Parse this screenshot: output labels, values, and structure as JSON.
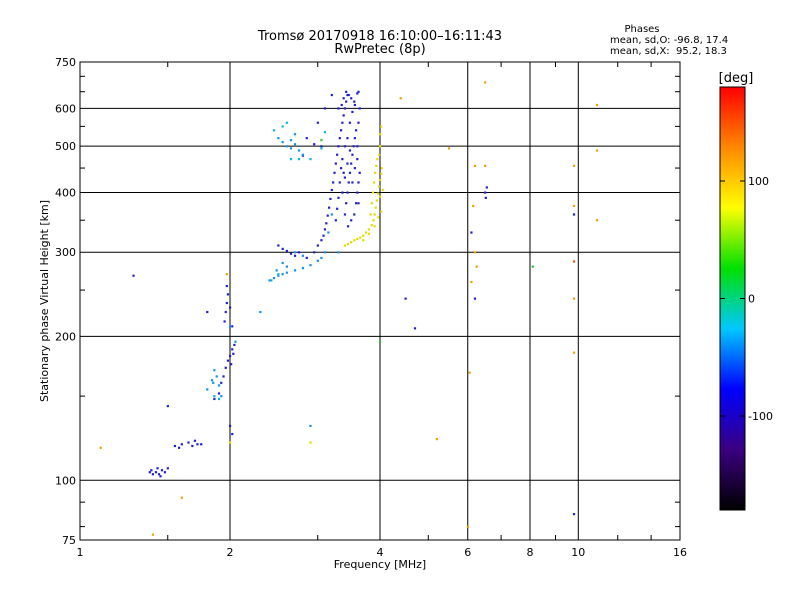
{
  "chart_data": {
    "type": "scatter",
    "title": "Tromsø 20170918 16:10:00–16:11:43",
    "subtitle": "RwPretec (8p)",
    "xlabel": "Frequency [MHz]",
    "ylabel": "Stationary phase Virtual Height [km]",
    "x_scale": "log",
    "y_scale": "log",
    "xlim": [
      1,
      16
    ],
    "ylim": [
      75,
      750
    ],
    "x_ticks": [
      1,
      2,
      4,
      6,
      8,
      10,
      16
    ],
    "y_ticks": [
      75,
      100,
      200,
      300,
      400,
      500,
      600,
      750
    ],
    "grid": true,
    "info": {
      "heading": "Phases",
      "line1": "mean, sd,O: -96.8, 17.4",
      "line2": "mean, sd,X:  95.2, 18.3"
    },
    "colorbar": {
      "label": "[deg]",
      "range": [
        -180,
        180
      ],
      "ticks": [
        -100,
        0,
        100
      ],
      "colors": [
        "#000000",
        "#3a0080",
        "#0000ff",
        "#00c8ff",
        "#00e000",
        "#ffff00",
        "#ff8800",
        "#ff0000"
      ]
    },
    "series": [
      {
        "color": "#2020d0",
        "points": [
          [
            1.38,
            104
          ],
          [
            1.4,
            103
          ],
          [
            1.42,
            104
          ],
          [
            1.44,
            103
          ],
          [
            1.46,
            105
          ],
          [
            1.48,
            104
          ],
          [
            1.39,
            105
          ],
          [
            1.45,
            102
          ],
          [
            1.5,
            106
          ],
          [
            1.43,
            106
          ],
          [
            1.55,
            118
          ],
          [
            1.58,
            117
          ],
          [
            1.6,
            119
          ],
          [
            1.65,
            120
          ],
          [
            1.7,
            121
          ],
          [
            1.68,
            118
          ],
          [
            1.72,
            119
          ],
          [
            1.75,
            119
          ],
          [
            1.5,
            143
          ],
          [
            1.8,
            225
          ],
          [
            1.28,
            268
          ],
          [
            1.86,
            148
          ],
          [
            1.9,
            152
          ],
          [
            1.92,
            160
          ],
          [
            1.94,
            165
          ],
          [
            1.96,
            172
          ],
          [
            1.98,
            178
          ],
          [
            2.0,
            182
          ],
          [
            2.02,
            188
          ],
          [
            2.04,
            192
          ],
          [
            2.03,
            184
          ],
          [
            2.01,
            175
          ],
          [
            1.95,
            215
          ],
          [
            1.96,
            225
          ],
          [
            1.97,
            235
          ],
          [
            1.98,
            245
          ],
          [
            1.97,
            255
          ],
          [
            2.0,
            230
          ],
          [
            2.02,
            210
          ],
          [
            2.0,
            130
          ],
          [
            2.02,
            125
          ],
          [
            2.55,
            305
          ],
          [
            2.6,
            302
          ],
          [
            2.65,
            298
          ],
          [
            2.7,
            295
          ],
          [
            2.75,
            300
          ],
          [
            2.5,
            310
          ],
          [
            2.85,
            292
          ],
          [
            2.95,
            300
          ],
          [
            3.0,
            310
          ],
          [
            3.05,
            318
          ],
          [
            3.08,
            325
          ],
          [
            3.1,
            335
          ],
          [
            3.12,
            345
          ],
          [
            3.14,
            358
          ],
          [
            3.16,
            372
          ],
          [
            3.18,
            388
          ],
          [
            3.2,
            405
          ],
          [
            3.22,
            420
          ],
          [
            3.24,
            440
          ],
          [
            3.26,
            460
          ],
          [
            3.28,
            480
          ],
          [
            3.3,
            500
          ],
          [
            3.32,
            520
          ],
          [
            3.34,
            540
          ],
          [
            3.36,
            560
          ],
          [
            3.38,
            580
          ],
          [
            3.4,
            600
          ],
          [
            3.42,
            620
          ],
          [
            3.44,
            640
          ],
          [
            3.3,
            600
          ],
          [
            3.35,
            610
          ],
          [
            3.38,
            630
          ],
          [
            3.42,
            650
          ],
          [
            3.46,
            640
          ],
          [
            3.5,
            630
          ],
          [
            3.55,
            620
          ],
          [
            3.6,
            645
          ],
          [
            3.62,
            650
          ],
          [
            3.4,
            360
          ],
          [
            3.42,
            380
          ],
          [
            3.44,
            400
          ],
          [
            3.46,
            420
          ],
          [
            3.48,
            440
          ],
          [
            3.5,
            460
          ],
          [
            3.52,
            480
          ],
          [
            3.54,
            500
          ],
          [
            3.56,
            520
          ],
          [
            3.58,
            540
          ],
          [
            3.6,
            400
          ],
          [
            3.62,
            420
          ],
          [
            3.64,
            440
          ],
          [
            3.45,
            340
          ],
          [
            3.5,
            350
          ],
          [
            3.55,
            360
          ],
          [
            3.58,
            380
          ],
          [
            3.6,
            500
          ],
          [
            3.62,
            560
          ],
          [
            3.64,
            600
          ],
          [
            3.38,
            440
          ],
          [
            3.36,
            470
          ],
          [
            3.34,
            450
          ],
          [
            3.32,
            420
          ],
          [
            3.3,
            390
          ],
          [
            3.28,
            370
          ],
          [
            3.26,
            350
          ],
          [
            3.4,
            500
          ],
          [
            3.44,
            520
          ],
          [
            3.48,
            560
          ],
          [
            3.52,
            590
          ],
          [
            3.56,
            610
          ],
          [
            3.36,
            400
          ],
          [
            3.4,
            430
          ],
          [
            3.44,
            460
          ],
          [
            3.48,
            490
          ],
          [
            3.52,
            420
          ],
          [
            3.56,
            450
          ],
          [
            3.6,
            470
          ],
          [
            3.62,
            380
          ],
          [
            2.95,
            505
          ],
          [
            3.05,
            500
          ],
          [
            2.85,
            520
          ],
          [
            2.8,
            478
          ],
          [
            3.1,
            600
          ],
          [
            3.0,
            560
          ],
          [
            3.2,
            640
          ],
          [
            4.5,
            240
          ],
          [
            4.7,
            208
          ],
          [
            6.1,
            330
          ],
          [
            6.5,
            400
          ],
          [
            6.52,
            390
          ],
          [
            6.55,
            410
          ],
          [
            9.8,
            360
          ],
          [
            9.8,
            85
          ],
          [
            6.2,
            240
          ]
        ]
      },
      {
        "color": "#1890e8",
        "points": [
          [
            2.4,
            262
          ],
          [
            2.45,
            265
          ],
          [
            2.5,
            268
          ],
          [
            2.55,
            270
          ],
          [
            2.6,
            272
          ],
          [
            2.7,
            275
          ],
          [
            2.8,
            278
          ],
          [
            2.9,
            282
          ],
          [
            3.0,
            288
          ],
          [
            3.05,
            292
          ],
          [
            3.1,
            300
          ],
          [
            2.5,
            520
          ],
          [
            2.55,
            510
          ],
          [
            2.6,
            500
          ],
          [
            2.65,
            495
          ],
          [
            2.7,
            505
          ],
          [
            2.75,
            490
          ],
          [
            2.8,
            480
          ],
          [
            2.7,
            530
          ],
          [
            2.65,
            515
          ],
          [
            2.55,
            285
          ],
          [
            2.48,
            275
          ],
          [
            2.6,
            280
          ],
          [
            2.7,
            300
          ],
          [
            2.8,
            295
          ],
          [
            3.15,
            330
          ],
          [
            3.2,
            360
          ],
          [
            1.8,
            155
          ],
          [
            1.85,
            160
          ],
          [
            1.88,
            165
          ],
          [
            1.9,
            158
          ],
          [
            1.92,
            150
          ],
          [
            1.86,
            170
          ],
          [
            1.84,
            162
          ],
          [
            2.05,
            195
          ],
          [
            2.0,
            210
          ],
          [
            2.3,
            225
          ],
          [
            2.9,
            130
          ],
          [
            3.3,
            300
          ]
        ]
      },
      {
        "color": "#00b8e0",
        "points": [
          [
            2.45,
            540
          ],
          [
            2.55,
            550
          ],
          [
            2.75,
            470
          ],
          [
            2.9,
            470
          ],
          [
            3.05,
            495
          ],
          [
            2.65,
            470
          ],
          [
            2.6,
            560
          ],
          [
            2.5,
            270
          ],
          [
            2.42,
            262
          ],
          [
            1.86,
            150
          ],
          [
            1.9,
            148
          ],
          [
            3.1,
            535
          ]
        ]
      },
      {
        "color": "#e8d800",
        "points": [
          [
            3.5,
            315
          ],
          [
            3.55,
            318
          ],
          [
            3.6,
            320
          ],
          [
            3.65,
            322
          ],
          [
            3.7,
            325
          ],
          [
            3.75,
            330
          ],
          [
            3.8,
            335
          ],
          [
            3.85,
            342
          ],
          [
            3.88,
            350
          ],
          [
            3.9,
            360
          ],
          [
            3.92,
            372
          ],
          [
            3.94,
            385
          ],
          [
            3.96,
            398
          ],
          [
            3.98,
            412
          ],
          [
            4.0,
            425
          ],
          [
            4.02,
            438
          ],
          [
            4.03,
            450
          ],
          [
            3.95,
            470
          ],
          [
            3.98,
            480
          ],
          [
            4.0,
            500
          ],
          [
            3.93,
            455
          ],
          [
            3.91,
            440
          ],
          [
            3.89,
            420
          ],
          [
            3.87,
            400
          ],
          [
            3.85,
            380
          ],
          [
            3.83,
            360
          ],
          [
            3.4,
            310
          ],
          [
            3.45,
            312
          ],
          [
            3.7,
            318
          ],
          [
            3.8,
            328
          ],
          [
            3.9,
            340
          ],
          [
            4.0,
            392
          ],
          [
            4.05,
            405
          ],
          [
            4.02,
            365
          ],
          [
            3.97,
            355
          ],
          [
            4.0,
            530
          ],
          [
            4.02,
            550
          ],
          [
            2.0,
            120
          ],
          [
            2.9,
            120
          ]
        ]
      },
      {
        "color": "#f0a000",
        "points": [
          [
            4.4,
            630
          ],
          [
            5.5,
            495
          ],
          [
            6.5,
            680
          ],
          [
            6.2,
            455
          ],
          [
            6.5,
            455
          ],
          [
            6.15,
            375
          ],
          [
            6.2,
            300
          ],
          [
            6.25,
            280
          ],
          [
            6.1,
            260
          ],
          [
            6.05,
            168
          ],
          [
            6.0,
            80
          ],
          [
            10.9,
            610
          ],
          [
            10.9,
            490
          ],
          [
            10.9,
            350
          ],
          [
            9.8,
            455
          ],
          [
            9.8,
            375
          ],
          [
            9.8,
            240
          ],
          [
            9.8,
            185
          ],
          [
            5.2,
            122
          ],
          [
            1.6,
            92
          ],
          [
            1.1,
            117
          ],
          [
            1.4,
            77
          ],
          [
            1.97,
            270
          ]
        ]
      },
      {
        "color": "#ff5000",
        "points": [
          [
            9.8,
            287
          ]
        ]
      },
      {
        "color": "#30c030",
        "points": [
          [
            3.05,
            515
          ],
          [
            8.1,
            280
          ],
          [
            4.0,
            195
          ]
        ]
      }
    ]
  }
}
